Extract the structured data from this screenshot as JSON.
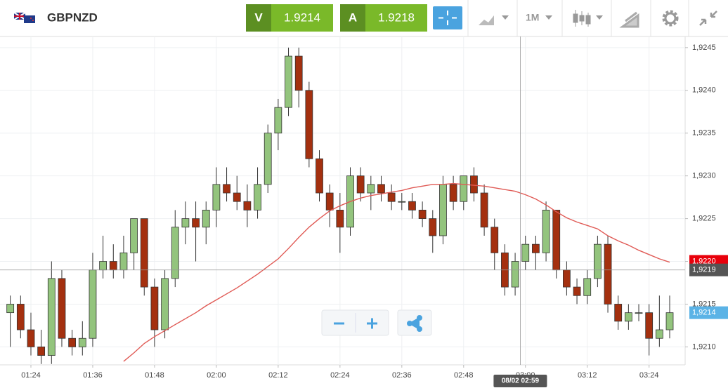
{
  "toolbar": {
    "symbol": "GBPNZD",
    "sell_label": "V",
    "sell_price": "1.9214",
    "buy_label": "A",
    "buy_price": "1.9218",
    "timeframe": "1M"
  },
  "chart_data": {
    "type": "candlestick",
    "x": [
      "01:20",
      "01:22",
      "01:24",
      "01:26",
      "01:28",
      "01:30",
      "01:32",
      "01:34",
      "01:36",
      "01:38",
      "01:40",
      "01:42",
      "01:44",
      "01:46",
      "01:48",
      "01:50",
      "01:52",
      "01:54",
      "01:56",
      "01:58",
      "02:00",
      "02:02",
      "02:04",
      "02:06",
      "02:08",
      "02:10",
      "02:12",
      "02:14",
      "02:16",
      "02:18",
      "02:20",
      "02:22",
      "02:24",
      "02:26",
      "02:28",
      "02:30",
      "02:32",
      "02:34",
      "02:36",
      "02:38",
      "02:40",
      "02:42",
      "02:44",
      "02:46",
      "02:48",
      "02:50",
      "02:52",
      "02:54",
      "02:56",
      "02:58",
      "03:00",
      "03:02",
      "03:04",
      "03:06",
      "03:08",
      "03:10",
      "03:12",
      "03:14",
      "03:16",
      "03:18",
      "03:20",
      "03:22",
      "03:24",
      "03:26",
      "03:28"
    ],
    "open": [
      1.9214,
      1.9215,
      1.9212,
      1.921,
      1.9209,
      1.9218,
      1.9211,
      1.921,
      1.9211,
      1.9219,
      1.922,
      1.9219,
      1.9221,
      1.9225,
      1.9217,
      1.9212,
      1.9218,
      1.9224,
      1.9225,
      1.9224,
      1.9226,
      1.9229,
      1.9228,
      1.9227,
      1.9226,
      1.9229,
      1.9235,
      1.9238,
      1.9244,
      1.924,
      1.9232,
      1.9228,
      1.9226,
      1.9224,
      1.923,
      1.9228,
      1.9229,
      1.9228,
      1.9227,
      1.9227,
      1.9226,
      1.9225,
      1.9223,
      1.9229,
      1.9227,
      1.923,
      1.9228,
      1.9224,
      1.9221,
      1.9217,
      1.922,
      1.9222,
      1.9221,
      1.9226,
      1.9219,
      1.9217,
      1.9216,
      1.9218,
      1.9222,
      1.9215,
      1.9213,
      1.9214,
      1.9214,
      1.9211,
      1.9212
    ],
    "high": [
      1.9216,
      1.9216,
      1.9214,
      1.9212,
      1.922,
      1.9219,
      1.9212,
      1.9213,
      1.9221,
      1.9223,
      1.9222,
      1.9223,
      1.9225,
      1.9225,
      1.9218,
      1.9219,
      1.9226,
      1.9227,
      1.9227,
      1.9227,
      1.9231,
      1.9231,
      1.923,
      1.9229,
      1.9231,
      1.9236,
      1.9239,
      1.9245,
      1.9245,
      1.9241,
      1.9233,
      1.9229,
      1.9228,
      1.9231,
      1.9231,
      1.923,
      1.923,
      1.9229,
      1.9228,
      1.9228,
      1.9227,
      1.9226,
      1.923,
      1.923,
      1.923,
      1.9231,
      1.9229,
      1.9225,
      1.9222,
      1.9221,
      1.9223,
      1.9223,
      1.9227,
      1.9226,
      1.922,
      1.9218,
      1.9219,
      1.9223,
      1.9223,
      1.9216,
      1.9215,
      1.9215,
      1.9215,
      1.9216,
      1.9216
    ],
    "low": [
      1.921,
      1.9211,
      1.9209,
      1.9208,
      1.9208,
      1.921,
      1.9209,
      1.9209,
      1.921,
      1.9218,
      1.9218,
      1.9218,
      1.9219,
      1.9216,
      1.921,
      1.9211,
      1.9217,
      1.9222,
      1.922,
      1.9222,
      1.9224,
      1.9227,
      1.9226,
      1.9224,
      1.9225,
      1.9228,
      1.9233,
      1.9237,
      1.9238,
      1.9231,
      1.9227,
      1.9224,
      1.9221,
      1.9223,
      1.9227,
      1.9226,
      1.9227,
      1.9226,
      1.9226,
      1.9225,
      1.9224,
      1.9221,
      1.9222,
      1.9226,
      1.9226,
      1.9227,
      1.9223,
      1.9219,
      1.9216,
      1.9216,
      1.9219,
      1.9219,
      1.922,
      1.9218,
      1.9216,
      1.9215,
      1.9215,
      1.9217,
      1.9214,
      1.9212,
      1.9212,
      1.9213,
      1.9209,
      1.921,
      1.9211
    ],
    "close": [
      1.9215,
      1.9212,
      1.921,
      1.9209,
      1.9218,
      1.9211,
      1.921,
      1.9211,
      1.9219,
      1.922,
      1.9219,
      1.9221,
      1.9225,
      1.9217,
      1.9212,
      1.9218,
      1.9224,
      1.9225,
      1.9224,
      1.9226,
      1.9229,
      1.9228,
      1.9227,
      1.9226,
      1.9229,
      1.9235,
      1.9238,
      1.9244,
      1.924,
      1.9232,
      1.9228,
      1.9226,
      1.9224,
      1.923,
      1.9228,
      1.9229,
      1.9228,
      1.9227,
      1.9227,
      1.9226,
      1.9225,
      1.9223,
      1.9229,
      1.9227,
      1.923,
      1.9228,
      1.9224,
      1.9221,
      1.9217,
      1.922,
      1.9222,
      1.9221,
      1.9226,
      1.9219,
      1.9217,
      1.9216,
      1.9218,
      1.9222,
      1.9215,
      1.9213,
      1.9214,
      1.9214,
      1.9211,
      1.9212,
      1.9214
    ],
    "up_color": "#93c47d",
    "down_color": "#a4300f",
    "moving_average": {
      "color": "#e05a55",
      "values": [
        null,
        null,
        null,
        null,
        null,
        null,
        null,
        null,
        null,
        null,
        null,
        1.92083,
        1.92093,
        1.92104,
        1.92112,
        1.92119,
        1.92126,
        1.92133,
        1.9214,
        1.92148,
        1.92155,
        1.92162,
        1.92169,
        1.92177,
        1.92185,
        1.92194,
        1.92203,
        1.92215,
        1.92228,
        1.9224,
        1.9225,
        1.92259,
        1.92265,
        1.9227,
        1.92274,
        1.92277,
        1.92279,
        1.92281,
        1.92283,
        1.92286,
        1.92288,
        1.9229,
        1.9229,
        1.92291,
        1.9229,
        1.92289,
        1.92288,
        1.92286,
        1.92284,
        1.92282,
        1.92278,
        1.92273,
        1.92266,
        1.92258,
        1.92251,
        1.92246,
        1.92242,
        1.92238,
        1.9223,
        1.92224,
        1.92219,
        1.92213,
        1.92208,
        1.92203,
        1.92199
      ]
    },
    "xlim": [
      "01:18",
      "03:31"
    ],
    "xticks": [
      "01:24",
      "01:36",
      "01:48",
      "02:00",
      "02:12",
      "02:24",
      "02:36",
      "02:48",
      "03:00",
      "03:12",
      "03:24"
    ],
    "ylim": [
      1.92079,
      1.92463
    ],
    "yticks": [
      {
        "value": 1.921,
        "label": "1,9210"
      },
      {
        "value": 1.9215,
        "label": "1,9215"
      },
      {
        "value": 1.922,
        "label": "1,9220"
      },
      {
        "value": 1.9225,
        "label": "1,9225"
      },
      {
        "value": 1.923,
        "label": "1,9230"
      },
      {
        "value": 1.9235,
        "label": "1,9235"
      },
      {
        "value": 1.924,
        "label": "1,9240"
      },
      {
        "value": 1.9245,
        "label": "1,9245"
      }
    ],
    "grid": true,
    "crosshair": {
      "y": 1.9219,
      "y_label": "1,9219",
      "x": "02:59",
      "x_label": "08/02 02:59"
    },
    "price_tags": [
      {
        "value": 1.922,
        "label": "1,9220",
        "color": "#e8000b"
      },
      {
        "value": 1.9214,
        "label": "1,9214",
        "color": "#5bb3e6"
      }
    ]
  }
}
